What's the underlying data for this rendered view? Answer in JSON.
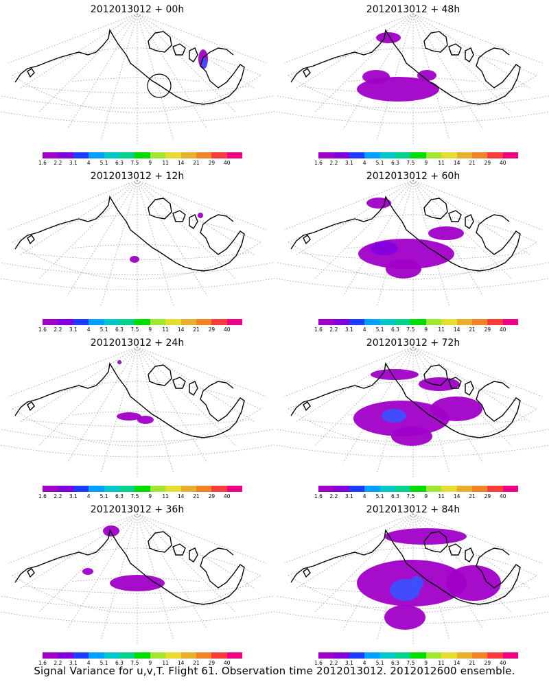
{
  "figure": {
    "caption": "Signal Variance for u,v,T. Flight 61. Observation time 2012013012. 2012012600 ensemble."
  },
  "colorbar": {
    "colors": [
      "#a000c8",
      "#8200dc",
      "#1e3cff",
      "#00a0ff",
      "#00c8c8",
      "#00d28c",
      "#00dc00",
      "#a0e632",
      "#e6dc32",
      "#e6af2d",
      "#f08228",
      "#fa3c3c",
      "#f00082"
    ],
    "labels": [
      "1.6",
      "2.2",
      "3.1",
      "4",
      "5.1",
      "6.3",
      "7.5",
      "9",
      "11",
      "14",
      "21",
      "29",
      "40"
    ]
  },
  "panels": [
    {
      "title": "2012013012 + 00h"
    },
    {
      "title": "2012013012 + 48h"
    },
    {
      "title": "2012013012 + 12h"
    },
    {
      "title": "2012013012 + 60h"
    },
    {
      "title": "2012013012 + 24h"
    },
    {
      "title": "2012013012 + 72h"
    },
    {
      "title": "2012013012 + 36h"
    },
    {
      "title": "2012013012 + 84h"
    }
  ]
}
